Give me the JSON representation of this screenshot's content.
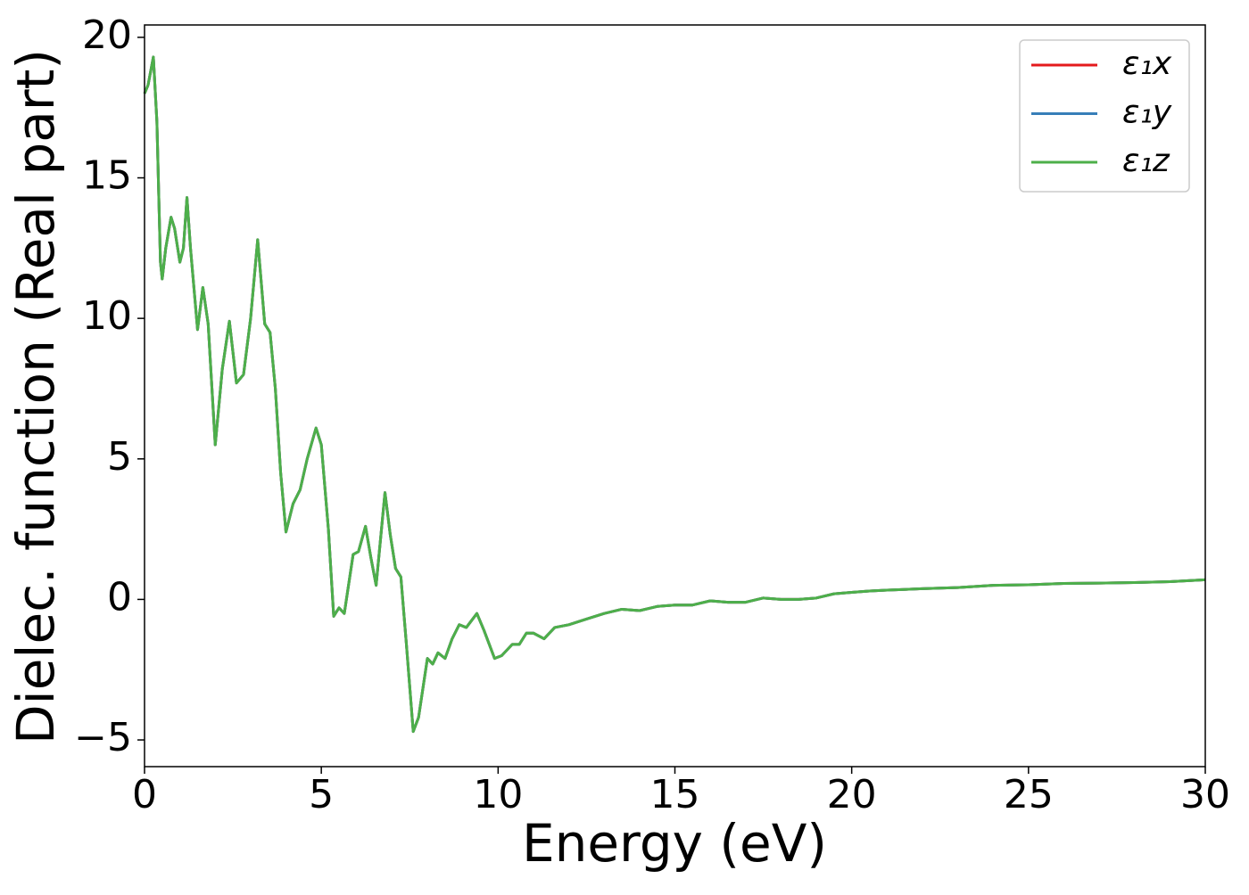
{
  "chart_data": {
    "type": "line",
    "xlabel": "Energy (eV)",
    "ylabel": "Dielec. function (Real part)",
    "x": [
      0,
      0.1,
      0.25,
      0.35,
      0.45,
      0.5,
      0.6,
      0.75,
      0.85,
      1.0,
      1.1,
      1.2,
      1.3,
      1.5,
      1.65,
      1.8,
      2.0,
      2.2,
      2.4,
      2.6,
      2.8,
      3.0,
      3.2,
      3.4,
      3.55,
      3.7,
      3.85,
      4.0,
      4.2,
      4.4,
      4.6,
      4.85,
      5.0,
      5.2,
      5.35,
      5.5,
      5.65,
      5.9,
      6.05,
      6.25,
      6.4,
      6.55,
      6.8,
      6.95,
      7.1,
      7.25,
      7.4,
      7.6,
      7.75,
      8.0,
      8.15,
      8.3,
      8.5,
      8.7,
      8.9,
      9.1,
      9.4,
      9.6,
      9.9,
      10.1,
      10.4,
      10.6,
      10.8,
      11.0,
      11.3,
      11.6,
      12.0,
      12.5,
      13.0,
      13.5,
      14.0,
      14.5,
      15.0,
      15.5,
      16.0,
      16.5,
      17.0,
      17.5,
      18.0,
      18.5,
      19.0,
      19.5,
      20.0,
      20.5,
      21.0,
      22.0,
      23.0,
      24.0,
      25.0,
      26.0,
      27.0,
      28.0,
      29.0,
      30.0
    ],
    "series": [
      {
        "name": "ε₁x",
        "color": "#e41a1c",
        "values": [
          18.0,
          18.3,
          19.3,
          17,
          12,
          11.4,
          12.5,
          13.6,
          13.2,
          12.0,
          12.5,
          14.3,
          12.5,
          9.6,
          11.1,
          9.8,
          5.5,
          8.2,
          9.9,
          7.7,
          8.0,
          10,
          12.8,
          9.8,
          9.5,
          7.5,
          4.5,
          2.4,
          3.4,
          3.9,
          5.0,
          6.1,
          5.5,
          2.5,
          -0.6,
          -0.3,
          -0.5,
          1.6,
          1.7,
          2.6,
          1.5,
          0.5,
          3.8,
          2.3,
          1.1,
          0.8,
          -1.5,
          -4.7,
          -4.2,
          -2.1,
          -2.3,
          -1.9,
          -2.1,
          -1.4,
          -0.9,
          -1.0,
          -0.5,
          -1.1,
          -2.1,
          -2.0,
          -1.6,
          -1.6,
          -1.2,
          -1.2,
          -1.4,
          -1.0,
          -0.9,
          -0.7,
          -0.5,
          -0.35,
          -0.4,
          -0.25,
          -0.2,
          -0.2,
          -0.05,
          -0.1,
          -0.1,
          0.05,
          0.0,
          0.0,
          0.05,
          0.2,
          0.25,
          0.3,
          0.33,
          0.38,
          0.42,
          0.5,
          0.52,
          0.57,
          0.58,
          0.6,
          0.63,
          0.7
        ]
      },
      {
        "name": "ε₁y",
        "color": "#377eb8",
        "values": [
          18.0,
          18.3,
          19.3,
          17,
          12,
          11.4,
          12.5,
          13.6,
          13.2,
          12.0,
          12.5,
          14.3,
          12.5,
          9.6,
          11.1,
          9.8,
          5.5,
          8.2,
          9.9,
          7.7,
          8.0,
          10,
          12.8,
          9.8,
          9.5,
          7.5,
          4.5,
          2.4,
          3.4,
          3.9,
          5.0,
          6.1,
          5.5,
          2.5,
          -0.6,
          -0.3,
          -0.5,
          1.6,
          1.7,
          2.6,
          1.5,
          0.5,
          3.8,
          2.3,
          1.1,
          0.8,
          -1.5,
          -4.7,
          -4.2,
          -2.1,
          -2.3,
          -1.9,
          -2.1,
          -1.4,
          -0.9,
          -1.0,
          -0.5,
          -1.1,
          -2.1,
          -2.0,
          -1.6,
          -1.6,
          -1.2,
          -1.2,
          -1.4,
          -1.0,
          -0.9,
          -0.7,
          -0.5,
          -0.35,
          -0.4,
          -0.25,
          -0.2,
          -0.2,
          -0.05,
          -0.1,
          -0.1,
          0.05,
          0.0,
          0.0,
          0.05,
          0.2,
          0.25,
          0.3,
          0.33,
          0.38,
          0.42,
          0.5,
          0.52,
          0.57,
          0.58,
          0.6,
          0.63,
          0.7
        ]
      },
      {
        "name": "ε₁z",
        "color": "#4daf4a",
        "values": [
          18.0,
          18.3,
          19.3,
          17,
          12,
          11.4,
          12.5,
          13.6,
          13.2,
          12.0,
          12.5,
          14.3,
          12.5,
          9.6,
          11.1,
          9.8,
          5.5,
          8.2,
          9.9,
          7.7,
          8.0,
          10,
          12.8,
          9.8,
          9.5,
          7.5,
          4.5,
          2.4,
          3.4,
          3.9,
          5.0,
          6.1,
          5.5,
          2.5,
          -0.6,
          -0.3,
          -0.5,
          1.6,
          1.7,
          2.6,
          1.5,
          0.5,
          3.8,
          2.3,
          1.1,
          0.8,
          -1.5,
          -4.7,
          -4.2,
          -2.1,
          -2.3,
          -1.9,
          -2.1,
          -1.4,
          -0.9,
          -1.0,
          -0.5,
          -1.1,
          -2.1,
          -2.0,
          -1.6,
          -1.6,
          -1.2,
          -1.2,
          -1.4,
          -1.0,
          -0.9,
          -0.7,
          -0.5,
          -0.35,
          -0.4,
          -0.25,
          -0.2,
          -0.2,
          -0.05,
          -0.1,
          -0.1,
          0.05,
          0.0,
          0.0,
          0.05,
          0.2,
          0.25,
          0.3,
          0.33,
          0.38,
          0.42,
          0.5,
          0.52,
          0.57,
          0.58,
          0.6,
          0.63,
          0.7
        ]
      }
    ],
    "xlim": [
      0,
      30
    ],
    "xticks": [
      0,
      5,
      10,
      15,
      20,
      25,
      30
    ],
    "ylim": [
      -5.95,
      20.44
    ],
    "yticks": [
      {
        "value": -5,
        "label": "−5"
      },
      0,
      5,
      10,
      15,
      20
    ],
    "grid": false,
    "legend": "upper right"
  }
}
